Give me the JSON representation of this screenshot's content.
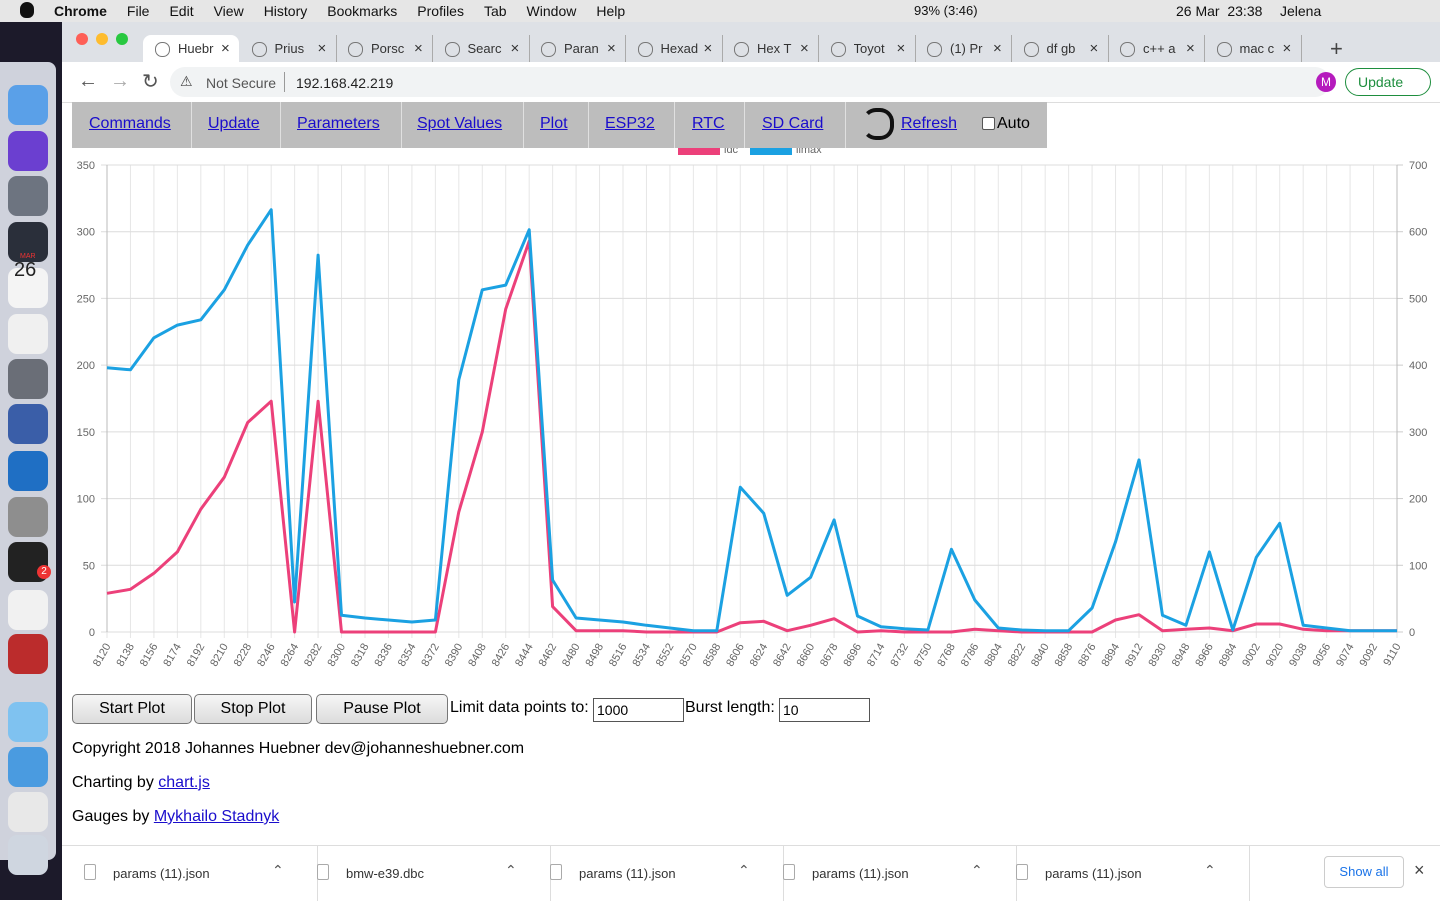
{
  "menu_bar": {
    "app": "Chrome",
    "items": [
      "File",
      "Edit",
      "View",
      "History",
      "Bookmarks",
      "Profiles",
      "Tab",
      "Window",
      "Help"
    ],
    "battery": "93% (3:46)",
    "datetime": "26 Mar  23:38",
    "user": "Jelena"
  },
  "tabs": [
    "Huebr",
    "Prius",
    "Porsc",
    "Searc",
    "Paran",
    "Hexad",
    "Hex T",
    "Toyot",
    "(1) Pr",
    "df gb",
    "c++ a",
    "mac c"
  ],
  "address_bar": {
    "security": "Not Secure",
    "url": "192.168.42.219",
    "profile": "M",
    "update": "Update"
  },
  "dock": {
    "calendar_month": "MAR",
    "calendar_day": "26",
    "badge": "2"
  },
  "nav": {
    "links": [
      "Commands",
      "Update",
      "Parameters",
      "Spot Values",
      "Plot",
      "ESP32",
      "RTC",
      "SD Card"
    ],
    "refresh": "Refresh",
    "auto": "Auto"
  },
  "chart_data": {
    "type": "line",
    "categories": [
      8120,
      8138,
      8156,
      8174,
      8192,
      8210,
      8228,
      8246,
      8264,
      8282,
      8300,
      8318,
      8336,
      8354,
      8372,
      8390,
      8408,
      8426,
      8444,
      8462,
      8480,
      8498,
      8516,
      8534,
      8552,
      8570,
      8588,
      8606,
      8624,
      8642,
      8660,
      8678,
      8696,
      8714,
      8732,
      8750,
      8768,
      8786,
      8804,
      8822,
      8840,
      8858,
      8876,
      8894,
      8912,
      8930,
      8948,
      8966,
      8984,
      9002,
      9020,
      9038,
      9056,
      9074,
      9092,
      9110
    ],
    "series": [
      {
        "name": "idc",
        "color": "#ec407a",
        "values": [
          29,
          32,
          44,
          60,
          92,
          116,
          157,
          173,
          0,
          173,
          0,
          0,
          0,
          0,
          0,
          90,
          150,
          242,
          293,
          19,
          1,
          1,
          1,
          0,
          0,
          0,
          0,
          7,
          8,
          1,
          5,
          10,
          0,
          1,
          0,
          0,
          0,
          2,
          1,
          0,
          0,
          0,
          0,
          9,
          13,
          1,
          2,
          3,
          1,
          6,
          6,
          2,
          1,
          1,
          1,
          1
        ]
      },
      {
        "name": "ilmax",
        "color": "#1ba1e2",
        "axis": "y2",
        "values": [
          396,
          393,
          441,
          460,
          468,
          513,
          580,
          633,
          45,
          565,
          25,
          21,
          18,
          15,
          18,
          378,
          513,
          520,
          603,
          78,
          21,
          18,
          15,
          10,
          6,
          2,
          2,
          217,
          178,
          55,
          82,
          168,
          24,
          8,
          5,
          3,
          124,
          48,
          6,
          3,
          2,
          2,
          36,
          135,
          258,
          25,
          10,
          120,
          3,
          112,
          163,
          10,
          6,
          2,
          2,
          2
        ]
      }
    ],
    "ylim": [
      0,
      350
    ],
    "yticks": [
      0,
      50,
      100,
      150,
      200,
      250,
      300,
      350
    ],
    "y2lim": [
      0,
      700
    ],
    "y2ticks": [
      0,
      100,
      200,
      300,
      400,
      500,
      600,
      700
    ],
    "grid": true
  },
  "controls": {
    "buttons": [
      "Start Plot",
      "Stop Plot",
      "Pause Plot"
    ],
    "limit_label": "Limit data points to:",
    "limit_value": "1000",
    "burst_label": "Burst length:",
    "burst_value": "10"
  },
  "footer": {
    "copyright": "Copyright 2018 Johannes Huebner dev@johanneshuebner.com",
    "charting_prefix": "Charting by",
    "charting_link": "chart.js",
    "gauges_prefix": "Gauges by",
    "gauges_link": "Mykhailo Stadnyk"
  },
  "downloads": {
    "files": [
      "params (11).json",
      "bmw-e39.dbc",
      "params (11).json",
      "params (11).json",
      "params (11).json"
    ],
    "show_all": "Show all"
  }
}
